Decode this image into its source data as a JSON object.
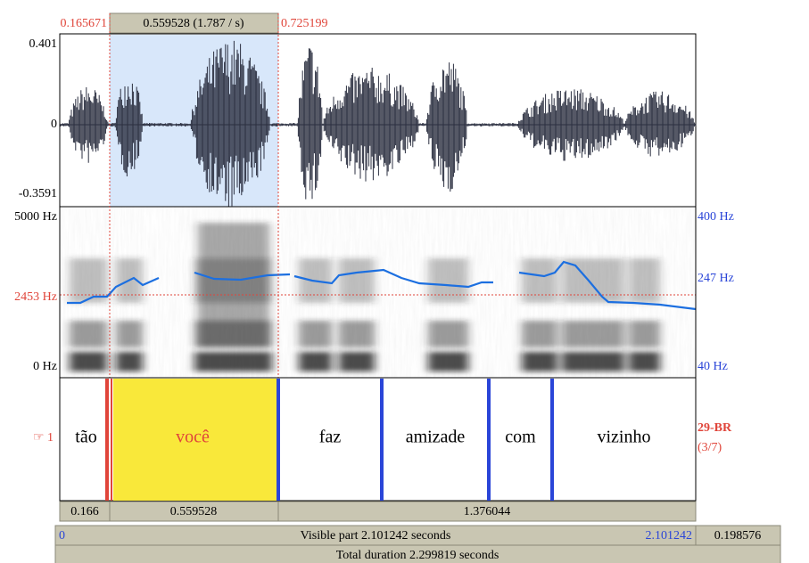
{
  "top": {
    "left_time": "0.165671",
    "selection": "0.559528 (1.787 / s)",
    "right_time": "0.725199"
  },
  "waveform": {
    "top_label": "0.401",
    "zero_label": "0",
    "bottom_label": "-0.3591"
  },
  "spectrogram": {
    "top_label": "5000 Hz",
    "cursor_label": "2453 Hz",
    "bottom_label": "0 Hz",
    "pitch_top": "400 Hz",
    "pitch_cursor": "247 Hz",
    "pitch_bottom": "40 Hz"
  },
  "tier": {
    "number": "☞ 1",
    "name": "29-BR",
    "count": "(3/7)",
    "intervals": [
      "tão",
      "você",
      "faz",
      "amizade",
      "com",
      "vizinho"
    ]
  },
  "durations": [
    "0.166",
    "0.559528",
    "1.376044"
  ],
  "visible": {
    "start": "0",
    "label": "Visible part 2.101242 seconds",
    "end": "2.101242",
    "right": "0.198576"
  },
  "total": "Total duration 2.299819 seconds"
}
